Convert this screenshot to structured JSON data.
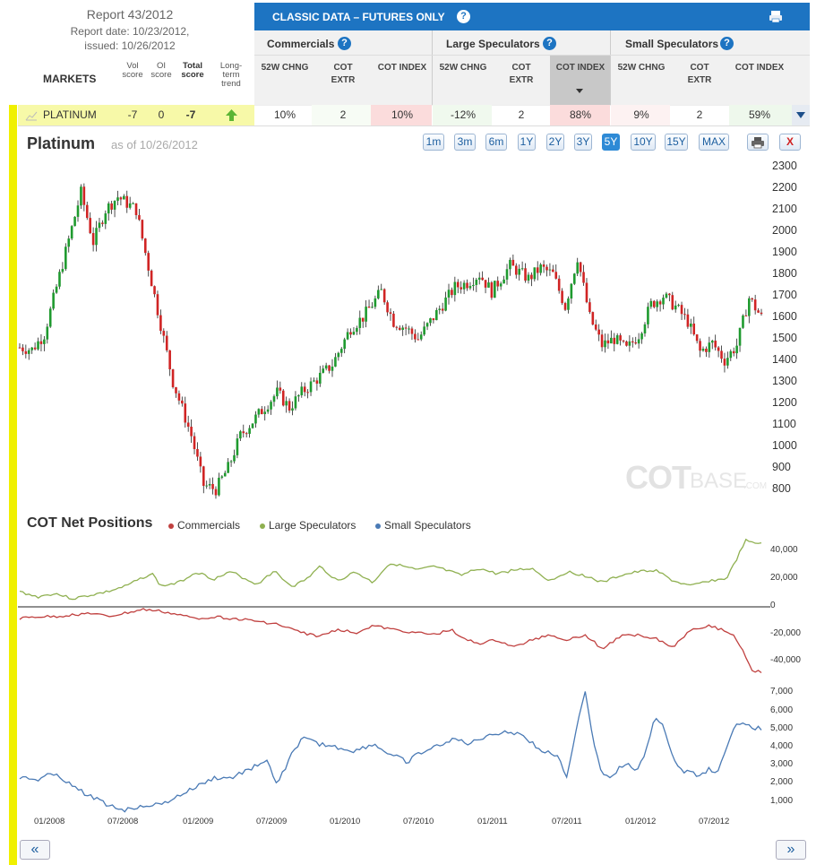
{
  "report": {
    "title": "Report 43/2012",
    "date": "Report date: 10/23/2012,",
    "issued": "issued: 10/26/2012"
  },
  "markets_label": "MARKETS",
  "scores": {
    "vol": "Vol score",
    "oi": "OI score",
    "total": "Total score",
    "trend": "Long-term trend"
  },
  "banner": {
    "title": "CLASSIC DATA – FUTURES ONLY",
    "help": "?"
  },
  "groups": {
    "commercials": "Commercials",
    "large": "Large Speculators",
    "small": "Small Speculators"
  },
  "subcols": {
    "chng": "52W CHNG",
    "extr": "COT EXTR",
    "index": "COT INDEX"
  },
  "row": {
    "name": "PLATINUM",
    "vol": "-7",
    "oi": "0",
    "total": "-7",
    "com": {
      "chng": "10%",
      "extr": "2",
      "index": "10%"
    },
    "lg": {
      "chng": "-12%",
      "extr": "2",
      "index": "88%"
    },
    "sm": {
      "chng": "9%",
      "extr": "2",
      "index": "59%"
    }
  },
  "chart": {
    "title": "Platinum",
    "asof": "as of 10/26/2012",
    "ranges": [
      "1m",
      "3m",
      "6m",
      "1Y",
      "2Y",
      "3Y",
      "5Y",
      "10Y",
      "15Y",
      "MAX"
    ],
    "active_range": "5Y",
    "close": "X",
    "watermark_a": "COT",
    "watermark_b": "BASE",
    "watermark_c": ".COM"
  },
  "net": {
    "title": "COT Net Positions",
    "legend": [
      "Commercials",
      "Large Speculators",
      "Small Speculators"
    ],
    "colors": [
      "#c0403f",
      "#8fb050",
      "#4a7ab5"
    ]
  },
  "nav": {
    "prev": "«",
    "next": "»"
  },
  "chart_data": [
    {
      "type": "candlestick",
      "title": "Platinum",
      "y_ticks": [
        2300,
        2200,
        2100,
        2000,
        1900,
        1800,
        1700,
        1600,
        1500,
        1400,
        1300,
        1200,
        1100,
        1000,
        900,
        800
      ],
      "x_labels": [
        "01/2008",
        "07/2008",
        "01/2009",
        "07/2009",
        "01/2010",
        "07/2010",
        "01/2011",
        "07/2011",
        "01/2012",
        "07/2012"
      ],
      "price_path": [
        [
          0,
          1460
        ],
        [
          4,
          1450
        ],
        [
          8,
          1520
        ],
        [
          14,
          1850
        ],
        [
          20,
          2180
        ],
        [
          24,
          1950
        ],
        [
          28,
          2100
        ],
        [
          32,
          2160
        ],
        [
          38,
          2100
        ],
        [
          44,
          1700
        ],
        [
          50,
          1300
        ],
        [
          56,
          1050
        ],
        [
          60,
          820
        ],
        [
          64,
          800
        ],
        [
          68,
          900
        ],
        [
          72,
          1050
        ],
        [
          78,
          1150
        ],
        [
          84,
          1250
        ],
        [
          88,
          1180
        ],
        [
          92,
          1250
        ],
        [
          96,
          1300
        ],
        [
          102,
          1380
        ],
        [
          108,
          1550
        ],
        [
          112,
          1600
        ],
        [
          118,
          1720
        ],
        [
          122,
          1580
        ],
        [
          126,
          1550
        ],
        [
          130,
          1500
        ],
        [
          136,
          1620
        ],
        [
          142,
          1740
        ],
        [
          146,
          1760
        ],
        [
          150,
          1800
        ],
        [
          154,
          1720
        ],
        [
          160,
          1840
        ],
        [
          166,
          1780
        ],
        [
          170,
          1830
        ],
        [
          174,
          1800
        ],
        [
          178,
          1650
        ],
        [
          182,
          1880
        ],
        [
          186,
          1600
        ],
        [
          190,
          1470
        ],
        [
          194,
          1500
        ],
        [
          198,
          1450
        ],
        [
          202,
          1520
        ],
        [
          206,
          1660
        ],
        [
          210,
          1700
        ],
        [
          214,
          1650
        ],
        [
          218,
          1580
        ],
        [
          222,
          1440
        ],
        [
          226,
          1480
        ],
        [
          230,
          1400
        ],
        [
          234,
          1470
        ],
        [
          238,
          1690
        ],
        [
          242,
          1600
        ]
      ],
      "y_range": [
        750,
        2330
      ]
    },
    {
      "type": "line",
      "title": "COT Net Positions",
      "series": [
        {
          "name": "Commercials",
          "y_ticks": [
            0,
            -20000,
            -40000
          ]
        },
        {
          "name": "Large Speculators",
          "y_ticks": [
            40000,
            20000
          ]
        },
        {
          "name": "Small Speculators",
          "y_ticks": [
            7000,
            6000,
            5000,
            4000,
            3000,
            2000,
            1000
          ]
        }
      ]
    }
  ]
}
